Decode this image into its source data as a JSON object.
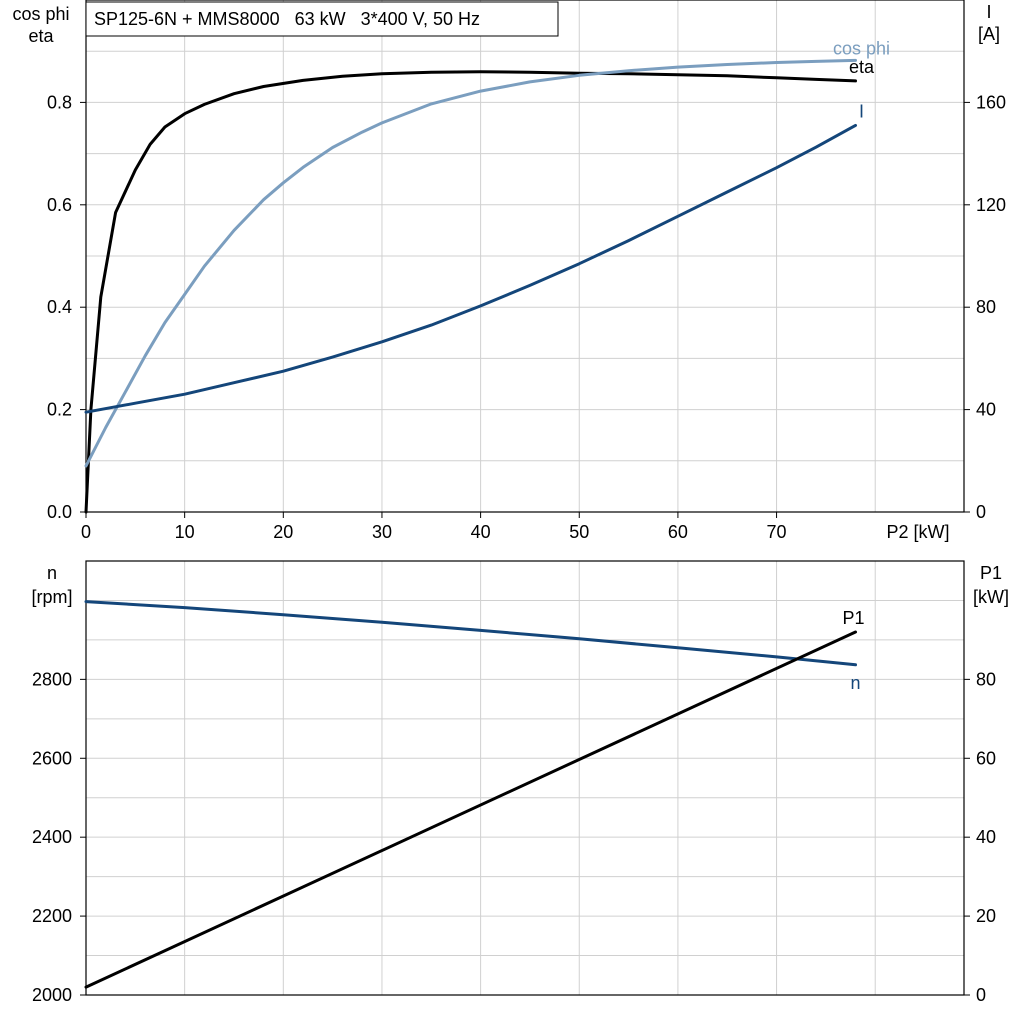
{
  "chart_data": [
    {
      "type": "line",
      "title": "SP125-6N + MMS8000   63 kW   3*400 V, 50 Hz",
      "xlabel": "P2 [kW]",
      "ylabel_left": [
        "cos phi",
        "eta"
      ],
      "ylabel_right": [
        "I",
        "[A]"
      ],
      "xlim": [
        0,
        89
      ],
      "ylim_left": [
        0,
        1.0
      ],
      "ylim_right": [
        0,
        200
      ],
      "x_ticks": [
        "0",
        "10",
        "20",
        "30",
        "40",
        "50",
        "60",
        "70"
      ],
      "y_ticks_left": [
        "0.0",
        "0.2",
        "0.4",
        "0.6",
        "0.8"
      ],
      "y_ticks_right": [
        "0",
        "40",
        "80",
        "120",
        "160"
      ],
      "grid": true,
      "series": [
        {
          "name": "eta",
          "axis": "left",
          "color": "#000000",
          "x": [
            0,
            0.5,
            1.5,
            3,
            5,
            6.5,
            8,
            10,
            12,
            15,
            18,
            22,
            26,
            30,
            35,
            40,
            45,
            50,
            55,
            60,
            65,
            70,
            74,
            78
          ],
          "y": [
            0.0,
            0.2,
            0.42,
            0.585,
            0.668,
            0.718,
            0.752,
            0.778,
            0.796,
            0.817,
            0.831,
            0.843,
            0.851,
            0.856,
            0.859,
            0.86,
            0.859,
            0.857,
            0.856,
            0.854,
            0.852,
            0.848,
            0.845,
            0.842
          ]
        },
        {
          "name": "cos phi",
          "axis": "left",
          "color": "#7b9ebf",
          "x": [
            0,
            2,
            4,
            6,
            8,
            10,
            12,
            15,
            18,
            20,
            22,
            25,
            28,
            30,
            35,
            40,
            45,
            50,
            55,
            60,
            65,
            70,
            74,
            78
          ],
          "y": [
            0.09,
            0.165,
            0.235,
            0.305,
            0.37,
            0.425,
            0.48,
            0.55,
            0.61,
            0.643,
            0.673,
            0.712,
            0.742,
            0.76,
            0.797,
            0.822,
            0.84,
            0.853,
            0.862,
            0.869,
            0.874,
            0.878,
            0.88,
            0.882
          ]
        },
        {
          "name": "I",
          "axis": "right",
          "color": "#14467a",
          "x": [
            0,
            5,
            10,
            15,
            20,
            25,
            30,
            35,
            40,
            45,
            50,
            55,
            60,
            65,
            70,
            74,
            78
          ],
          "y": [
            39,
            42.5,
            46,
            50.5,
            55,
            60.5,
            66.5,
            73,
            80.5,
            88.5,
            97,
            106,
            115.5,
            125,
            134.5,
            142.5,
            151
          ]
        }
      ]
    },
    {
      "type": "line",
      "xlim": [
        0,
        89
      ],
      "ylabel_left": [
        "n",
        "[rpm]"
      ],
      "ylabel_right": [
        "P1",
        "[kW]"
      ],
      "ylim_left": [
        2000,
        3100
      ],
      "ylim_right": [
        0,
        110
      ],
      "y_ticks_left": [
        "2000",
        "2200",
        "2400",
        "2600",
        "2800"
      ],
      "y_ticks_right": [
        "0",
        "20",
        "40",
        "60",
        "80"
      ],
      "grid": true,
      "series": [
        {
          "name": "n",
          "axis": "left",
          "color": "#14467a",
          "x": [
            0,
            10,
            20,
            30,
            40,
            50,
            60,
            70,
            78
          ],
          "y": [
            2997,
            2982,
            2964,
            2945,
            2924,
            2903,
            2880,
            2857,
            2837
          ]
        },
        {
          "name": "P1",
          "axis": "right",
          "color": "#000000",
          "x": [
            0,
            78
          ],
          "y": [
            2,
            92
          ]
        }
      ]
    }
  ]
}
